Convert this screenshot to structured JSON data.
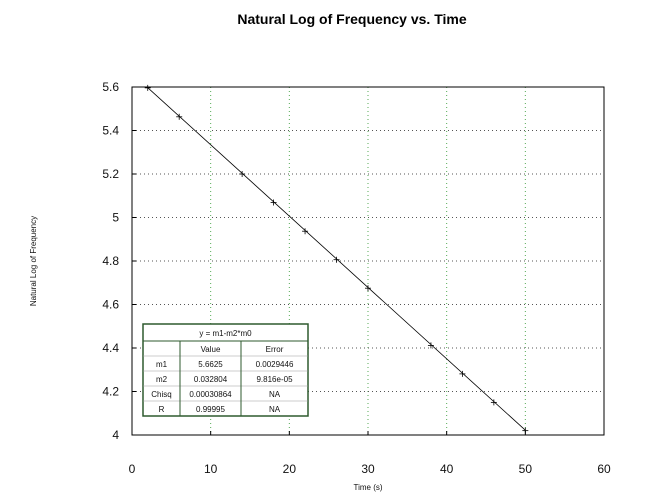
{
  "chart_data": {
    "type": "scatter",
    "title": "Natural Log of Frequency vs. Time",
    "xlabel": "Time (s)",
    "ylabel": "Natural Log of Frequency",
    "xlim": [
      0,
      60
    ],
    "ylim": [
      4,
      5.6
    ],
    "xticks": [
      0,
      10,
      20,
      30,
      40,
      50,
      60
    ],
    "yticks": [
      4,
      4.2,
      4.4,
      4.6,
      4.8,
      5,
      5.2,
      5.4,
      5.6
    ],
    "ytick_labels": [
      "4",
      "4.2",
      "4.4",
      "4.6",
      "4.8",
      "5",
      "5.2",
      "5.4",
      "5.6"
    ],
    "grid": true,
    "series": [
      {
        "marker": "+",
        "x": [
          2,
          6,
          14,
          18,
          22,
          26,
          30,
          38,
          42,
          46,
          50
        ],
        "y": [
          5.596,
          5.463,
          5.2,
          5.069,
          4.937,
          4.806,
          4.675,
          4.412,
          4.281,
          4.15,
          4.02
        ]
      }
    ],
    "fit_line": {
      "x": [
        2,
        50
      ],
      "y": [
        5.5969,
        4.0222
      ]
    },
    "fit_table": {
      "equation": "y = m1-m2*m0",
      "headers": [
        "",
        "Value",
        "Error"
      ],
      "rows": [
        [
          "m1",
          "5.6625",
          "0.0029446"
        ],
        [
          "m2",
          "0.032804",
          "9.816e-05"
        ],
        [
          "Chisq",
          "0.00030864",
          "NA"
        ],
        [
          "R",
          "0.99995",
          "NA"
        ]
      ]
    },
    "colors": {
      "grid_x": "#55aa55",
      "grid_y": "#b35ab3",
      "table_border": "#2e5a2e",
      "line": "#000000"
    }
  }
}
